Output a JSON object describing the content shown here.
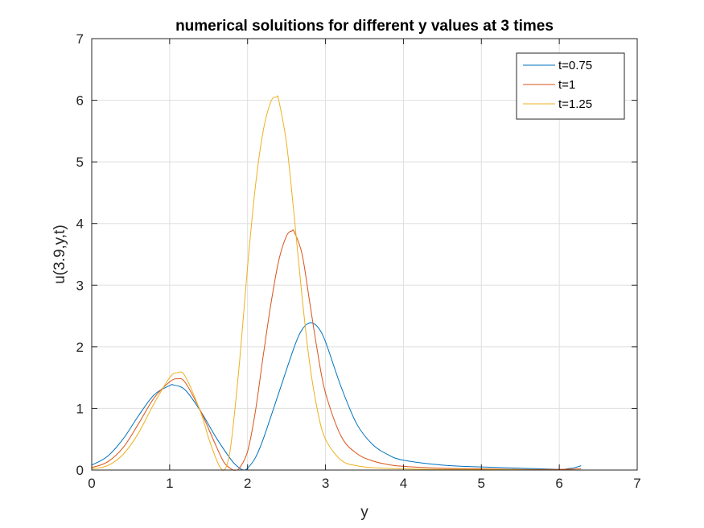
{
  "chart_data": {
    "type": "line",
    "title": "numerical soluitions for different y values at 3 times",
    "xlabel": "y",
    "ylabel": "u(3.9,y,t)",
    "xlim": [
      0,
      7
    ],
    "ylim": [
      0,
      7
    ],
    "xticks": [
      "0",
      "1",
      "2",
      "3",
      "4",
      "5",
      "6",
      "7"
    ],
    "yticks": [
      "0",
      "1",
      "2",
      "3",
      "4",
      "5",
      "6",
      "7"
    ],
    "grid": true,
    "legend_position": "top-right",
    "series": [
      {
        "name": "t=0.75",
        "color": "#0072BD",
        "x": [
          0,
          0.2,
          0.4,
          0.6,
          0.8,
          1.0,
          1.05,
          1.2,
          1.4,
          1.6,
          1.8,
          1.9,
          1.95,
          2.0,
          2.1,
          2.2,
          2.4,
          2.6,
          2.7,
          2.8,
          2.9,
          3.0,
          3.2,
          3.4,
          3.6,
          3.8,
          4.0,
          4.5,
          5.0,
          5.5,
          6.0,
          6.1,
          6.2,
          6.28
        ],
        "y": [
          0.08,
          0.22,
          0.5,
          0.88,
          1.22,
          1.37,
          1.38,
          1.3,
          0.95,
          0.52,
          0.15,
          0.03,
          0.0,
          0.03,
          0.2,
          0.5,
          1.25,
          2.0,
          2.28,
          2.39,
          2.32,
          2.08,
          1.35,
          0.75,
          0.42,
          0.25,
          0.16,
          0.08,
          0.05,
          0.03,
          0.01,
          0.02,
          0.04,
          0.07
        ]
      },
      {
        "name": "t=1",
        "color": "#D95319",
        "x": [
          0,
          0.2,
          0.4,
          0.6,
          0.8,
          1.0,
          1.1,
          1.2,
          1.4,
          1.6,
          1.7,
          1.8,
          1.85,
          1.9,
          2.0,
          2.1,
          2.2,
          2.3,
          2.4,
          2.5,
          2.57,
          2.6,
          2.7,
          2.8,
          2.9,
          3.0,
          3.2,
          3.4,
          3.6,
          3.8,
          4.0,
          4.5,
          5.0,
          5.5,
          6.0,
          6.28
        ],
        "y": [
          0.04,
          0.13,
          0.36,
          0.75,
          1.17,
          1.43,
          1.48,
          1.42,
          0.95,
          0.38,
          0.12,
          0.01,
          0.0,
          0.04,
          0.3,
          0.95,
          1.85,
          2.7,
          3.4,
          3.8,
          3.88,
          3.86,
          3.5,
          2.7,
          1.9,
          1.25,
          0.55,
          0.27,
          0.15,
          0.09,
          0.06,
          0.03,
          0.02,
          0.01,
          0.01,
          0.02
        ]
      },
      {
        "name": "t=1.25",
        "color": "#EDB120",
        "x": [
          0,
          0.2,
          0.4,
          0.6,
          0.8,
          1.0,
          1.1,
          1.2,
          1.4,
          1.5,
          1.6,
          1.65,
          1.7,
          1.75,
          1.8,
          1.9,
          2.0,
          2.1,
          2.2,
          2.3,
          2.37,
          2.4,
          2.5,
          2.6,
          2.7,
          2.8,
          2.9,
          3.0,
          3.2,
          3.4,
          3.6,
          4.0,
          4.5,
          5.0,
          6.0,
          6.28
        ],
        "y": [
          0.02,
          0.07,
          0.25,
          0.6,
          1.08,
          1.5,
          1.58,
          1.52,
          0.93,
          0.52,
          0.17,
          0.04,
          0.0,
          0.15,
          0.55,
          1.8,
          3.3,
          4.6,
          5.5,
          5.98,
          6.05,
          6.0,
          5.3,
          4.1,
          2.8,
          1.7,
          0.95,
          0.5,
          0.16,
          0.07,
          0.04,
          0.02,
          0.01,
          0.01,
          0.0,
          0.0
        ]
      }
    ]
  }
}
